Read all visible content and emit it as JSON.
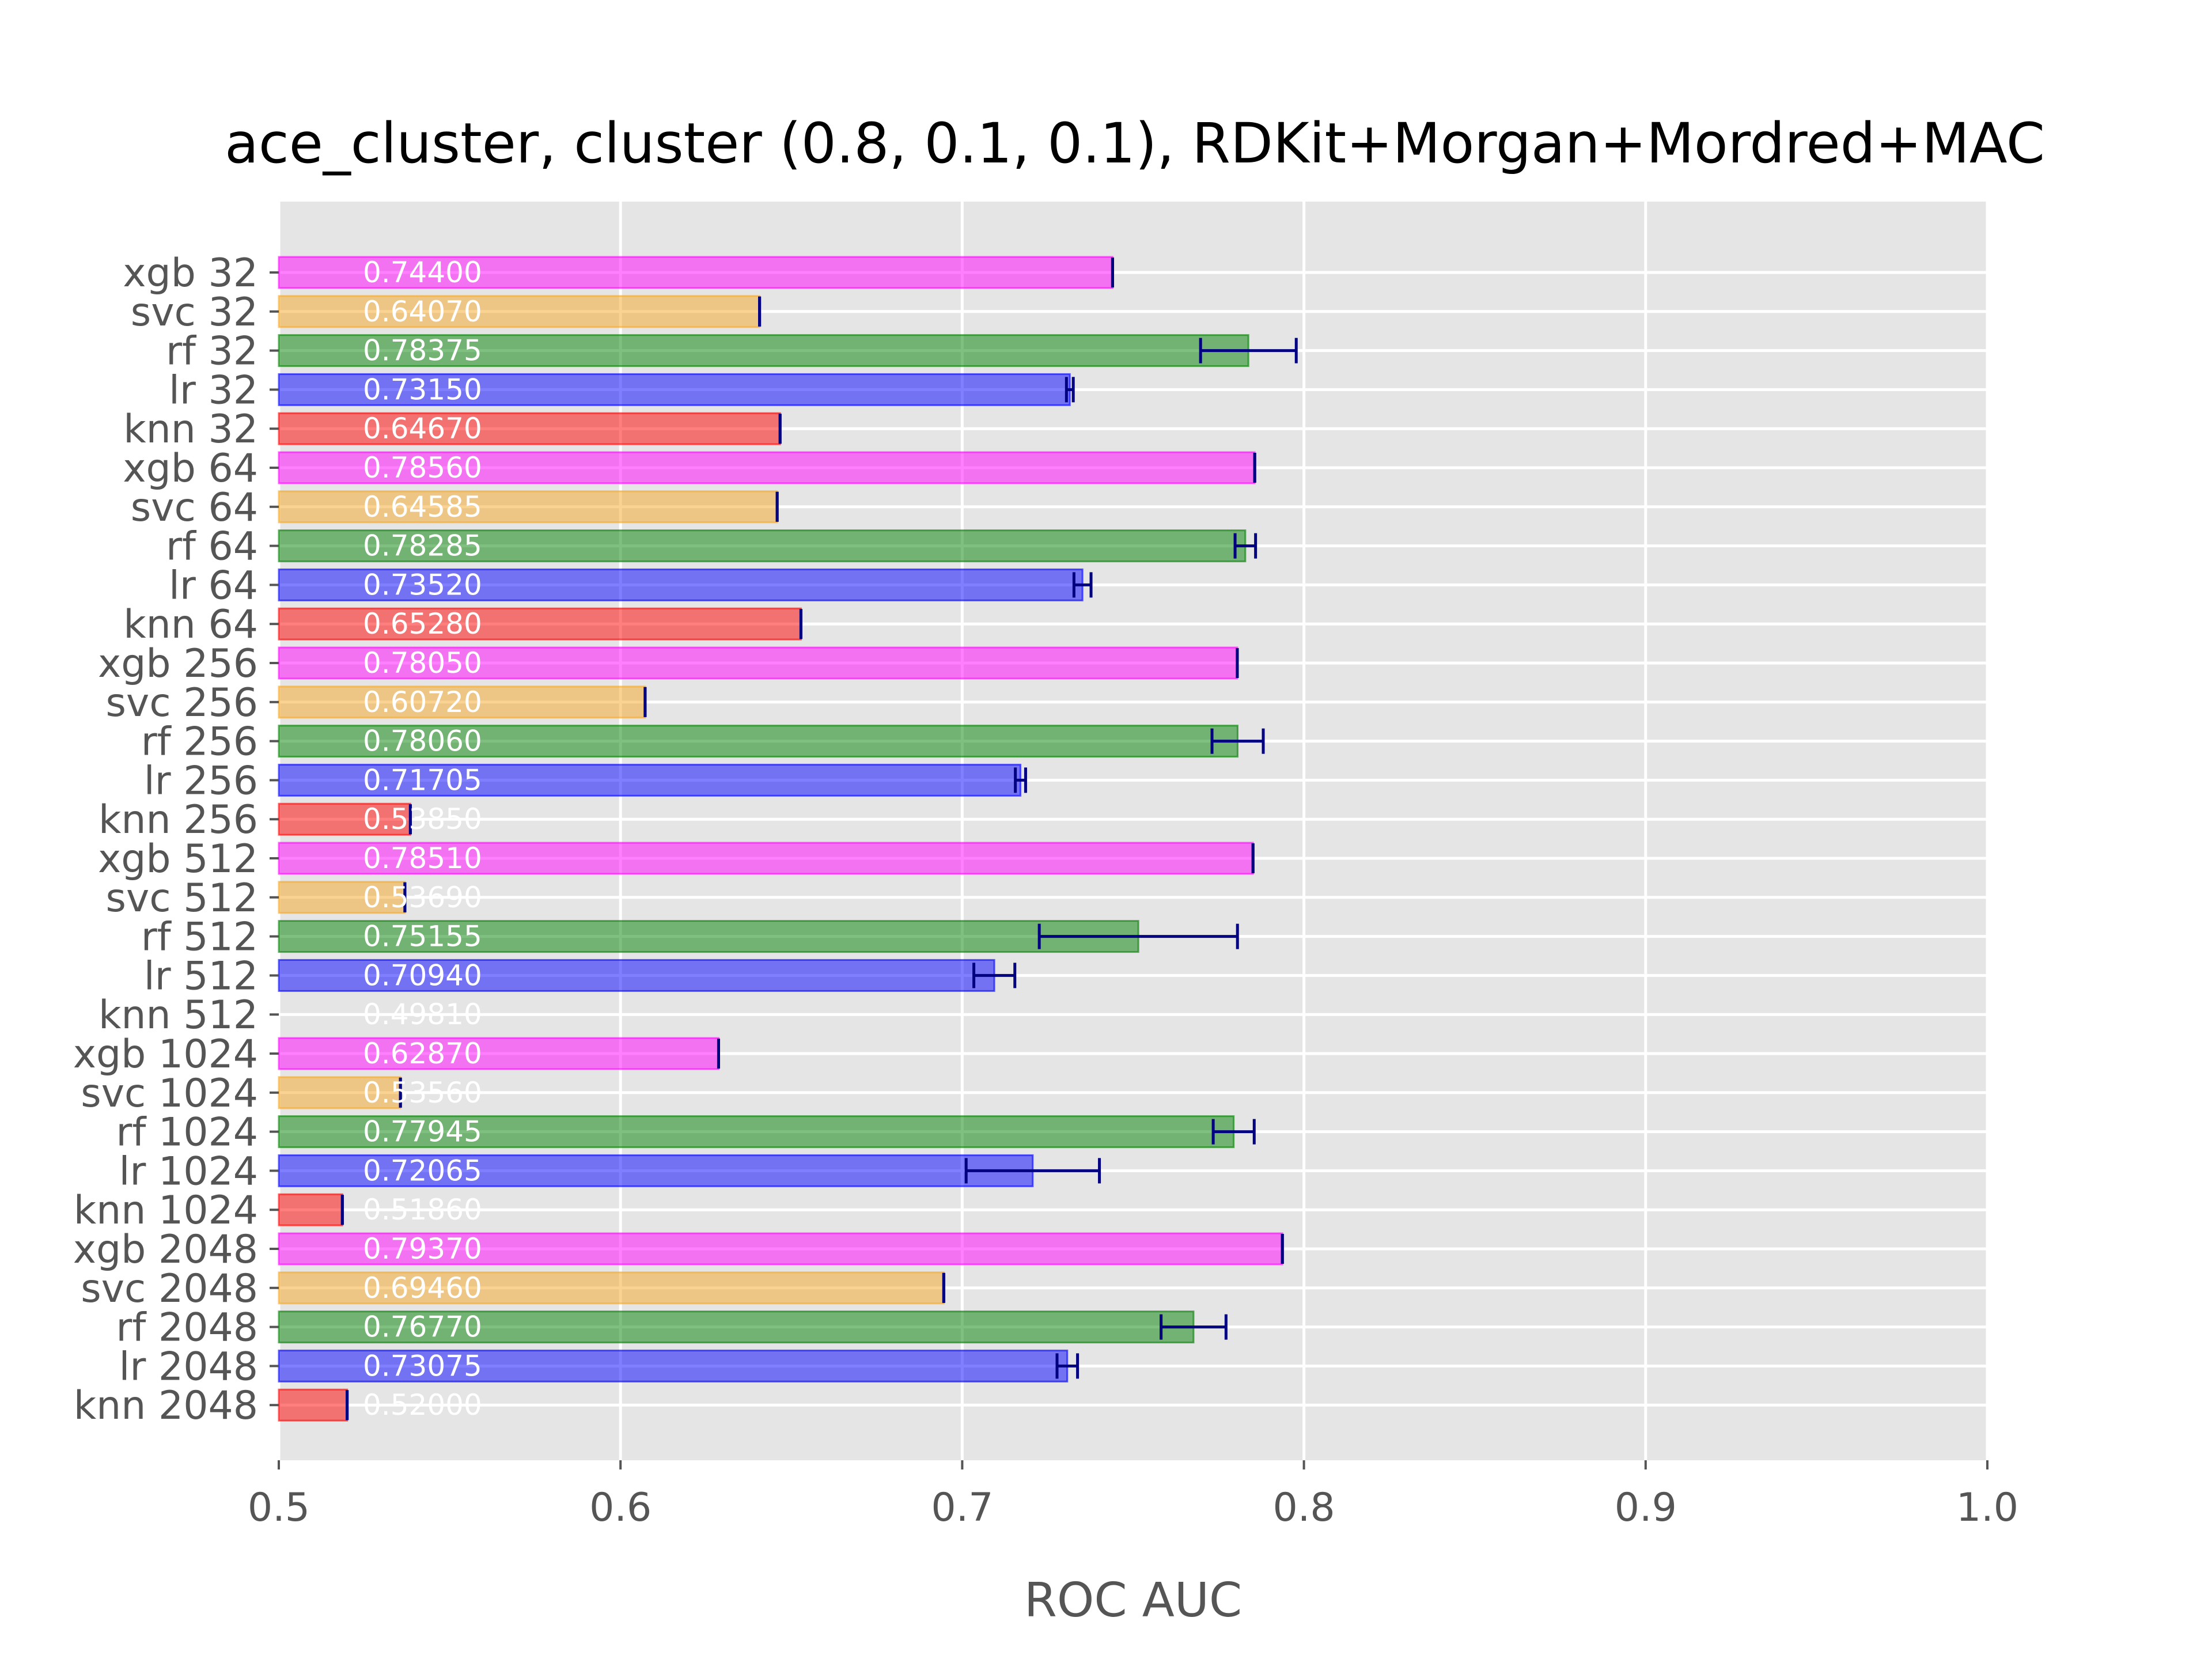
{
  "chart_data": {
    "type": "bar",
    "orientation": "horizontal",
    "title": "ace_cluster, cluster (0.8, 0.1, 0.1), RDKit+Morgan+Mordred+MAC",
    "xlabel": "ROC AUC",
    "ylabel": "",
    "xlim": [
      0.5,
      1.0
    ],
    "xticks": [
      "0.5",
      "0.6",
      "0.7",
      "0.8",
      "0.9",
      "1.0"
    ],
    "grid": true,
    "colors": {
      "xgb": "#ff00ff",
      "svc": "#f5a623",
      "rf": "#008000",
      "lr": "#0000ff",
      "knn": "#ff0000",
      "error": "#000080",
      "background": "#e5e5e5"
    },
    "bars": [
      {
        "label": "xgb 32",
        "model": "xgb",
        "value": 0.744,
        "value_text": "0.74400",
        "err": 0
      },
      {
        "label": "svc 32",
        "model": "svc",
        "value": 0.6407,
        "value_text": "0.64070",
        "err": 0
      },
      {
        "label": "rf 32",
        "model": "rf",
        "value": 0.78375,
        "value_text": "0.78375",
        "err": 0.014
      },
      {
        "label": "lr 32",
        "model": "lr",
        "value": 0.7315,
        "value_text": "0.73150",
        "err": 0.001
      },
      {
        "label": "knn 32",
        "model": "knn",
        "value": 0.6467,
        "value_text": "0.64670",
        "err": 0
      },
      {
        "label": "xgb 64",
        "model": "xgb",
        "value": 0.7856,
        "value_text": "0.78560",
        "err": 0
      },
      {
        "label": "svc 64",
        "model": "svc",
        "value": 0.64585,
        "value_text": "0.64585",
        "err": 0
      },
      {
        "label": "rf 64",
        "model": "rf",
        "value": 0.78285,
        "value_text": "0.78285",
        "err": 0.003
      },
      {
        "label": "lr 64",
        "model": "lr",
        "value": 0.7352,
        "value_text": "0.73520",
        "err": 0.0025
      },
      {
        "label": "knn 64",
        "model": "knn",
        "value": 0.6528,
        "value_text": "0.65280",
        "err": 0
      },
      {
        "label": "xgb 256",
        "model": "xgb",
        "value": 0.7805,
        "value_text": "0.78050",
        "err": 0
      },
      {
        "label": "svc 256",
        "model": "svc",
        "value": 0.6072,
        "value_text": "0.60720",
        "err": 0
      },
      {
        "label": "rf 256",
        "model": "rf",
        "value": 0.7806,
        "value_text": "0.78060",
        "err": 0.0075
      },
      {
        "label": "lr 256",
        "model": "lr",
        "value": 0.71705,
        "value_text": "0.71705",
        "err": 0.0015
      },
      {
        "label": "knn 256",
        "model": "knn",
        "value": 0.5385,
        "value_text": "0.53850",
        "err": 0
      },
      {
        "label": "xgb 512",
        "model": "xgb",
        "value": 0.7851,
        "value_text": "0.78510",
        "err": 0
      },
      {
        "label": "svc 512",
        "model": "svc",
        "value": 0.5369,
        "value_text": "0.53690",
        "err": 0
      },
      {
        "label": "rf 512",
        "model": "rf",
        "value": 0.75155,
        "value_text": "0.75155",
        "err": 0.029
      },
      {
        "label": "lr 512",
        "model": "lr",
        "value": 0.7094,
        "value_text": "0.70940",
        "err": 0.006
      },
      {
        "label": "knn 512",
        "model": "knn",
        "value": 0.4981,
        "value_text": "0.49810",
        "err": 0
      },
      {
        "label": "xgb 1024",
        "model": "xgb",
        "value": 0.6287,
        "value_text": "0.62870",
        "err": 0
      },
      {
        "label": "svc 1024",
        "model": "svc",
        "value": 0.5356,
        "value_text": "0.53560",
        "err": 0
      },
      {
        "label": "rf 1024",
        "model": "rf",
        "value": 0.77945,
        "value_text": "0.77945",
        "err": 0.006
      },
      {
        "label": "lr 1024",
        "model": "lr",
        "value": 0.72065,
        "value_text": "0.72065",
        "err": 0.0195
      },
      {
        "label": "knn 1024",
        "model": "knn",
        "value": 0.5186,
        "value_text": "0.51860",
        "err": 0
      },
      {
        "label": "xgb 2048",
        "model": "xgb",
        "value": 0.7937,
        "value_text": "0.79370",
        "err": 0
      },
      {
        "label": "svc 2048",
        "model": "svc",
        "value": 0.6946,
        "value_text": "0.69460",
        "err": 0
      },
      {
        "label": "rf 2048",
        "model": "rf",
        "value": 0.7677,
        "value_text": "0.76770",
        "err": 0.0095
      },
      {
        "label": "lr 2048",
        "model": "lr",
        "value": 0.73075,
        "value_text": "0.73075",
        "err": 0.003
      },
      {
        "label": "knn 2048",
        "model": "knn",
        "value": 0.52,
        "value_text": "0.52000",
        "err": 0
      }
    ]
  }
}
